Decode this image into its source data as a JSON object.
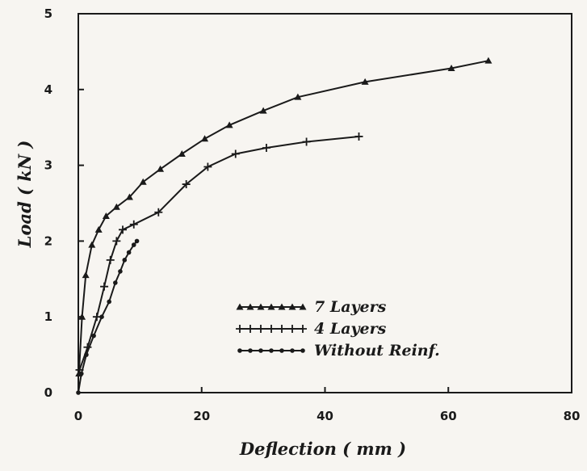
{
  "chart_data": {
    "type": "line",
    "xlabel": "Deflection ( mm )",
    "ylabel": "Load ( kN )",
    "xlim": [
      0,
      80
    ],
    "ylim": [
      0,
      5
    ],
    "xticks": [
      0,
      20,
      40,
      60,
      80
    ],
    "yticks": [
      0,
      1,
      2,
      3,
      4,
      5
    ],
    "xtick_labels": [
      "0",
      "20",
      "40",
      "60",
      "80"
    ],
    "ytick_labels": [
      "0",
      "1",
      "2",
      "3",
      "4",
      "5"
    ],
    "grid": false,
    "legend_position": "lower-right",
    "series": [
      {
        "name": "7 Layers",
        "marker": "triangle",
        "color": "#1a1a1a",
        "x": [
          0.1,
          0.6,
          1.2,
          2.2,
          3.3,
          4.5,
          6.2,
          8.3,
          10.5,
          13.3,
          16.8,
          20.5,
          24.5,
          30.0,
          35.6,
          46.5,
          60.5,
          66.5
        ],
        "y": [
          0.25,
          1.0,
          1.55,
          1.95,
          2.15,
          2.33,
          2.45,
          2.58,
          2.78,
          2.95,
          3.15,
          3.35,
          3.53,
          3.72,
          3.9,
          4.1,
          4.28,
          4.38
        ]
      },
      {
        "name": "4 Layers",
        "marker": "plus",
        "color": "#1a1a1a",
        "x": [
          0.2,
          1.5,
          3.0,
          4.2,
          5.2,
          6.2,
          7.2,
          9.0,
          13.0,
          17.5,
          21.0,
          25.5,
          30.5,
          37.0,
          45.5
        ],
        "y": [
          0.3,
          0.6,
          1.0,
          1.4,
          1.75,
          2.0,
          2.15,
          2.22,
          2.38,
          2.75,
          2.98,
          3.15,
          3.23,
          3.31,
          3.38
        ]
      },
      {
        "name": "Without Reinf.",
        "marker": "circle",
        "color": "#1a1a1a",
        "x": [
          0.0,
          0.5,
          1.3,
          2.5,
          3.8,
          5.0,
          6.0,
          6.8,
          7.5,
          8.2,
          9.0,
          9.5
        ],
        "y": [
          0.0,
          0.25,
          0.5,
          0.75,
          1.0,
          1.2,
          1.45,
          1.6,
          1.75,
          1.85,
          1.95,
          2.0
        ]
      }
    ]
  }
}
